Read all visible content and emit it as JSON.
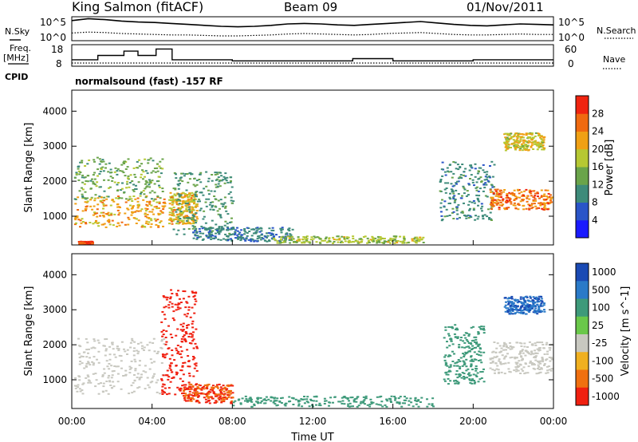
{
  "header": {
    "station": "King Salmon (fitACF)",
    "beam": "Beam 09",
    "date": "01/Nov/2011",
    "left_label_top": "N.Sky",
    "left_label_freq_1": "Freq.",
    "left_label_freq_2": "[MHz]",
    "left_label_cpid": "CPID",
    "right_label_top": "N.Search",
    "right_label_nave": "Nave",
    "cpid_text": "normalsound (fast)  -157 RF"
  },
  "chart_data": [
    {
      "type": "line",
      "name": "noise",
      "series": [
        {
          "name": "N.Sky",
          "style": "solid",
          "values": [
            4.2,
            4.6,
            4.4,
            4.1,
            3.9,
            3.8,
            3.6,
            3.4,
            3.2,
            3.0,
            2.9,
            3.0,
            3.2,
            3.5,
            3.6,
            3.5,
            3.3,
            3.2,
            3.4,
            3.6,
            3.8,
            4.0,
            3.7,
            3.4,
            3.2,
            3.1,
            3.3,
            3.5,
            3.4,
            3.3
          ]
        },
        {
          "name": "N.Search",
          "style": "dotted",
          "values": [
            1.6,
            1.8,
            1.7,
            1.5,
            1.4,
            1.3,
            1.2,
            1.2,
            1.1,
            1.0,
            1.0,
            1.1,
            1.2,
            1.4,
            1.5,
            1.4,
            1.3,
            1.2,
            1.3,
            1.5,
            1.6,
            1.7,
            1.5,
            1.3,
            1.2,
            1.2,
            1.3,
            1.4,
            1.3,
            1.3
          ]
        }
      ],
      "xlim": [
        0,
        24
      ],
      "ylim_left": [
        0,
        5
      ],
      "ytick_labels_left": [
        "10^5",
        "10^0"
      ],
      "ytick_labels_right": [
        "10^5",
        "10^0"
      ]
    },
    {
      "type": "line",
      "name": "frequency",
      "series": [
        {
          "name": "Freq.",
          "style": "solid",
          "points": [
            [
              0,
              11
            ],
            [
              1.3,
              11
            ],
            [
              1.3,
              13
            ],
            [
              2.6,
              13
            ],
            [
              2.6,
              15
            ],
            [
              3.3,
              15
            ],
            [
              3.3,
              13
            ],
            [
              4.2,
              13
            ],
            [
              4.2,
              16
            ],
            [
              5.0,
              16
            ],
            [
              5.0,
              11
            ],
            [
              8,
              11
            ],
            [
              8,
              10.5
            ],
            [
              14,
              10.5
            ],
            [
              14,
              11.5
            ],
            [
              16,
              11.5
            ],
            [
              16,
              10.5
            ],
            [
              20,
              10.5
            ],
            [
              20,
              11
            ],
            [
              24,
              11
            ]
          ]
        },
        {
          "name": "Nave",
          "style": "dotted",
          "points": [
            [
              0,
              9.5
            ],
            [
              24,
              9.5
            ]
          ]
        }
      ],
      "xlim": [
        0,
        24
      ],
      "ylim_left": [
        8,
        18
      ],
      "ytick_labels_left": [
        "18",
        "8"
      ],
      "ytick_labels_right": [
        "60",
        "0"
      ]
    },
    {
      "type": "heatmap",
      "name": "power",
      "ylabel": "Slant Range [km]",
      "xlim": [
        0,
        24
      ],
      "ylim": [
        180,
        4600
      ],
      "yticks": [
        1000,
        2000,
        3000,
        4000
      ],
      "colorbar": {
        "label": "Power [dB]",
        "ticks": [
          4,
          8,
          12,
          16,
          20,
          24,
          28
        ],
        "range": [
          0,
          32
        ],
        "colors": [
          "#1a1aff",
          "#2a55c8",
          "#3e8b7a",
          "#6aa44a",
          "#b6c833",
          "#f0a014",
          "#f06a10",
          "#f02410"
        ]
      },
      "regions": [
        {
          "t": [
            0.1,
            4.6
          ],
          "r": [
            700,
            1600
          ],
          "v": 22
        },
        {
          "t": [
            0.1,
            4.6
          ],
          "r": [
            1500,
            2700
          ],
          "v": 14
        },
        {
          "t": [
            4.8,
            6.2
          ],
          "r": [
            800,
            1700
          ],
          "v": 21
        },
        {
          "t": [
            5.0,
            8.0
          ],
          "r": [
            500,
            2300
          ],
          "v": 11
        },
        {
          "t": [
            6.0,
            11.0
          ],
          "r": [
            300,
            700
          ],
          "v": 9
        },
        {
          "t": [
            10.0,
            17.5
          ],
          "r": [
            250,
            450
          ],
          "v": 17
        },
        {
          "t": [
            18.3,
            21.0
          ],
          "r": [
            900,
            2600
          ],
          "v": 10
        },
        {
          "t": [
            20.8,
            24.0
          ],
          "r": [
            1200,
            1800
          ],
          "v": 25
        },
        {
          "t": [
            21.5,
            23.5
          ],
          "r": [
            2900,
            3400
          ],
          "v": 19
        },
        {
          "t": [
            0.3,
            1.0
          ],
          "r": [
            200,
            300
          ],
          "v": 30
        }
      ]
    },
    {
      "type": "heatmap",
      "name": "velocity",
      "xlabel": "Time UT",
      "ylabel": "Slant Range [km]",
      "xlim": [
        0,
        24
      ],
      "ylim": [
        180,
        4600
      ],
      "xticks": [
        "00:00",
        "04:00",
        "08:00",
        "12:00",
        "16:00",
        "20:00",
        "00:00"
      ],
      "yticks": [
        1000,
        2000,
        3000,
        4000
      ],
      "colorbar": {
        "label": "Velocity [m s^-1]",
        "ticks": [
          "1000",
          "500",
          "100",
          "25",
          "-25",
          "-100",
          "-500",
          "-1000"
        ],
        "colors": [
          "#1a4ab4",
          "#2a7ac8",
          "#3e9a7a",
          "#6ac84a",
          "#c8c8c0",
          "#f0b020",
          "#f07010",
          "#f02010"
        ]
      },
      "regions": [
        {
          "t": [
            0.1,
            4.6
          ],
          "r": [
            600,
            2200
          ],
          "v": 0
        },
        {
          "t": [
            4.4,
            6.2
          ],
          "r": [
            600,
            3600
          ],
          "v": -800
        },
        {
          "t": [
            5.5,
            8.0
          ],
          "r": [
            350,
            900
          ],
          "v": -300
        },
        {
          "t": [
            8.0,
            18.0
          ],
          "r": [
            250,
            550
          ],
          "v": 120
        },
        {
          "t": [
            18.5,
            20.5
          ],
          "r": [
            900,
            2600
          ],
          "v": 150
        },
        {
          "t": [
            20.8,
            24.0
          ],
          "r": [
            1200,
            2100
          ],
          "v": 0
        },
        {
          "t": [
            21.5,
            23.5
          ],
          "r": [
            2900,
            3400
          ],
          "v": 700
        }
      ]
    }
  ]
}
